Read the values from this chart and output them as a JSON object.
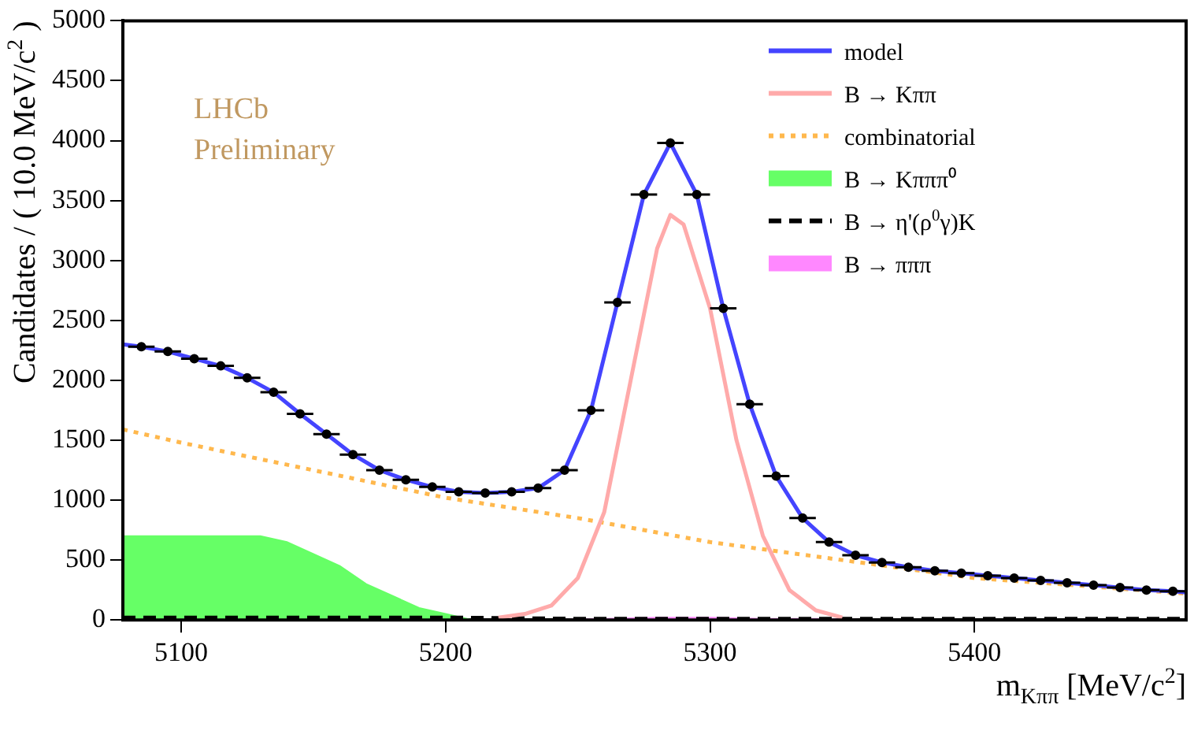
{
  "chart_data": {
    "type": "line",
    "xlabel": "m$_{Kππ}$ [MeV/c$^{2}$]",
    "ylabel": "Candidates / ( 10.0 MeV/c$^{2}$ )",
    "annotations": [
      "LHCb",
      "Preliminary"
    ],
    "xlim": [
      5078,
      5480
    ],
    "xticks": [
      5100,
      5200,
      5300,
      5400
    ],
    "ylim": [
      0,
      5000
    ],
    "yticks": [
      0,
      500,
      1000,
      1500,
      2000,
      2500,
      3000,
      3500,
      4000,
      4500,
      5000
    ],
    "grid": false,
    "legend": "top right",
    "series": [
      {
        "type": "line",
        "name": "model",
        "color": "#4444ff",
        "x": [
          5078,
          5085,
          5095,
          5105,
          5115,
          5125,
          5135,
          5145,
          5155,
          5165,
          5175,
          5185,
          5195,
          5205,
          5215,
          5225,
          5235,
          5245,
          5255,
          5265,
          5275,
          5285,
          5295,
          5305,
          5315,
          5325,
          5335,
          5345,
          5355,
          5365,
          5375,
          5385,
          5395,
          5405,
          5415,
          5425,
          5435,
          5445,
          5455,
          5465,
          5475,
          5480
        ],
        "values": [
          2300,
          2280,
          2240,
          2180,
          2120,
          2020,
          1900,
          1720,
          1550,
          1380,
          1250,
          1170,
          1110,
          1070,
          1060,
          1070,
          1100,
          1250,
          1750,
          2650,
          3550,
          3980,
          3550,
          2600,
          1800,
          1200,
          850,
          650,
          540,
          480,
          440,
          410,
          390,
          370,
          350,
          330,
          310,
          290,
          270,
          250,
          240,
          230
        ]
      },
      {
        "type": "line",
        "name": "B → Kππ",
        "color": "#ffaaaa",
        "x": [
          5220,
          5230,
          5240,
          5250,
          5260,
          5270,
          5280,
          5285,
          5290,
          5300,
          5310,
          5320,
          5330,
          5340,
          5350
        ],
        "values": [
          20,
          50,
          120,
          350,
          900,
          2000,
          3100,
          3380,
          3300,
          2600,
          1500,
          700,
          250,
          80,
          20
        ]
      },
      {
        "type": "line",
        "name": "combinatorial",
        "color": "#ffb84d",
        "line_style": "dotted",
        "x": [
          5078,
          5100,
          5150,
          5200,
          5250,
          5300,
          5350,
          5400,
          5450,
          5480
        ],
        "values": [
          1590,
          1480,
          1250,
          1020,
          850,
          650,
          500,
          350,
          270,
          220
        ]
      },
      {
        "type": "area",
        "name": "B → Kπππ⁰",
        "color": "#66ff66",
        "x": [
          5078,
          5090,
          5100,
          5110,
          5120,
          5130,
          5140,
          5150,
          5160,
          5170,
          5180,
          5190,
          5200,
          5210
        ],
        "values": [
          700,
          700,
          700,
          700,
          700,
          700,
          650,
          550,
          450,
          300,
          200,
          100,
          50,
          0
        ]
      },
      {
        "type": "line",
        "name": "B → η'(ρ$^{0}$γ)K",
        "color": "#000000",
        "line_style": "dashed",
        "x": [
          5078,
          5150,
          5200,
          5250,
          5300,
          5350,
          5400,
          5480
        ],
        "values": [
          20,
          20,
          20,
          10,
          10,
          10,
          10,
          10
        ]
      },
      {
        "type": "area",
        "name": "B → πππ",
        "color": "#ff88ff",
        "x": [
          5240,
          5260,
          5280,
          5300,
          5320,
          5340,
          5360
        ],
        "values": [
          0,
          10,
          20,
          20,
          10,
          10,
          0
        ]
      },
      {
        "type": "scatter",
        "color": "#000000",
        "marker": "circle",
        "x": [
          5085,
          5095,
          5105,
          5115,
          5125,
          5135,
          5145,
          5155,
          5165,
          5175,
          5185,
          5195,
          5205,
          5215,
          5225,
          5235,
          5245,
          5255,
          5265,
          5275,
          5285,
          5295,
          5305,
          5315,
          5325,
          5335,
          5345,
          5355,
          5365,
          5375,
          5385,
          5395,
          5405,
          5415,
          5425,
          5435,
          5445,
          5455,
          5465,
          5475
        ],
        "values": [
          2280,
          2240,
          2180,
          2120,
          2020,
          1900,
          1720,
          1550,
          1380,
          1250,
          1170,
          1110,
          1070,
          1060,
          1070,
          1100,
          1250,
          1750,
          2650,
          3550,
          3980,
          3550,
          2600,
          1800,
          1200,
          850,
          650,
          540,
          480,
          440,
          410,
          390,
          370,
          350,
          330,
          310,
          290,
          270,
          250,
          240
        ],
        "xerrors": [
          5,
          5,
          5,
          5,
          5,
          5,
          5,
          5,
          5,
          5,
          5,
          5,
          5,
          5,
          5,
          5,
          5,
          5,
          5,
          5,
          5,
          5,
          5,
          5,
          5,
          5,
          5,
          5,
          5,
          5,
          5,
          5,
          5,
          5,
          5,
          5,
          5,
          5,
          5,
          5
        ]
      }
    ]
  }
}
